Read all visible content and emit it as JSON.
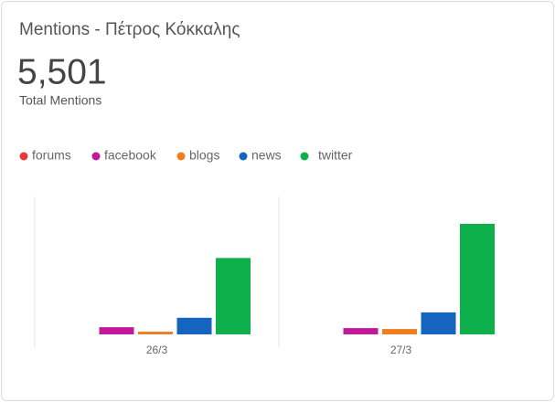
{
  "chart_data": {
    "type": "bar",
    "title": "Mentions - Πέτρος Κόκκαλης",
    "total": "5,501",
    "total_label": "Total Mentions",
    "categories": [
      "26/3",
      "27/3"
    ],
    "series": [
      {
        "name": "forums",
        "color": "#e53935",
        "values": [
          0,
          0
        ]
      },
      {
        "name": "facebook",
        "color": "#c2189b",
        "values": [
          160,
          140
        ]
      },
      {
        "name": "blogs",
        "color": "#ef7d22",
        "values": [
          60,
          120
        ]
      },
      {
        "name": "news",
        "color": "#1565c0",
        "values": [
          370,
          490
        ]
      },
      {
        "name": "twitter",
        "color": "#0db04b",
        "values": [
          1700,
          2460
        ]
      }
    ]
  }
}
